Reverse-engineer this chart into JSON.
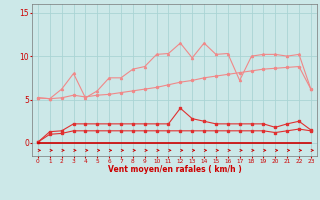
{
  "x": [
    0,
    1,
    2,
    3,
    4,
    5,
    6,
    7,
    8,
    9,
    10,
    11,
    12,
    13,
    14,
    15,
    16,
    17,
    18,
    19,
    20,
    21,
    22,
    23
  ],
  "line1": [
    5.2,
    5.1,
    5.2,
    5.5,
    5.3,
    5.5,
    5.6,
    5.8,
    6.0,
    6.2,
    6.4,
    6.7,
    7.0,
    7.2,
    7.5,
    7.7,
    7.9,
    8.1,
    8.3,
    8.5,
    8.6,
    8.7,
    8.8,
    6.2
  ],
  "line2": [
    5.2,
    5.1,
    6.2,
    8.0,
    5.2,
    6.0,
    7.5,
    7.5,
    8.5,
    8.8,
    10.2,
    10.3,
    11.5,
    9.8,
    11.5,
    10.2,
    10.3,
    7.2,
    10.0,
    10.2,
    10.2,
    10.0,
    10.2,
    6.2
  ],
  "line3": [
    0.1,
    1.3,
    1.4,
    2.2,
    2.2,
    2.2,
    2.2,
    2.2,
    2.2,
    2.2,
    2.2,
    2.2,
    4.0,
    2.8,
    2.5,
    2.2,
    2.2,
    2.2,
    2.2,
    2.2,
    1.8,
    2.2,
    2.5,
    1.5
  ],
  "line4": [
    0.1,
    1.0,
    1.1,
    1.4,
    1.4,
    1.4,
    1.4,
    1.4,
    1.4,
    1.4,
    1.4,
    1.4,
    1.4,
    1.4,
    1.4,
    1.4,
    1.4,
    1.4,
    1.4,
    1.4,
    1.2,
    1.4,
    1.6,
    1.4
  ],
  "line5": [
    0.0,
    0.0,
    0.0,
    0.0,
    0.0,
    0.0,
    0.0,
    0.0,
    0.0,
    0.0,
    0.0,
    0.0,
    0.0,
    0.0,
    0.0,
    0.0,
    0.0,
    0.0,
    0.0,
    0.0,
    0.0,
    0.0,
    0.0,
    0.0
  ],
  "bg_color": "#cce8e8",
  "grid_color": "#aad4d4",
  "color_light": "#f08888",
  "color_medium": "#e03030",
  "color_dark": "#cc0000",
  "xlabel": "Vent moyen/en rafales ( km/h )",
  "ylim": [
    -1.5,
    16.0
  ],
  "xlim": [
    -0.5,
    23.5
  ],
  "yticks": [
    0,
    5,
    10,
    15
  ],
  "xticks": [
    0,
    1,
    2,
    3,
    4,
    5,
    6,
    7,
    8,
    9,
    10,
    11,
    12,
    13,
    14,
    15,
    16,
    17,
    18,
    19,
    20,
    21,
    22,
    23
  ]
}
